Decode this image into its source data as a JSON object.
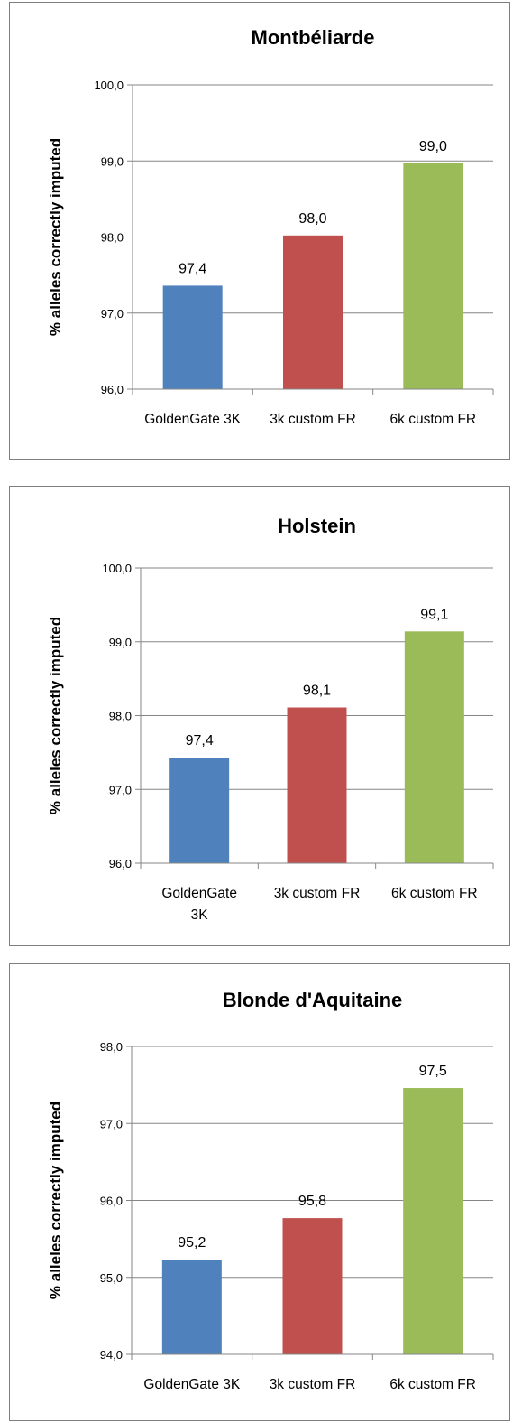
{
  "chart_data": [
    {
      "type": "bar",
      "title": "Montbéliarde",
      "ylabel": "% alleles correctly imputed",
      "xlabel": "",
      "categories": [
        "GoldenGate 3K",
        "3k custom FR",
        "6k custom FR"
      ],
      "category_lines": [
        [
          "GoldenGate 3K"
        ],
        [
          "3k custom FR"
        ],
        [
          "6k custom FR"
        ]
      ],
      "values": [
        97.36,
        98.02,
        98.97
      ],
      "data_labels": [
        "97,4",
        "98,0",
        "99,0"
      ],
      "ylim": [
        96.0,
        100.0
      ],
      "yticks": [
        96.0,
        97.0,
        98.0,
        99.0,
        100.0
      ],
      "ytick_labels": [
        "96,0",
        "97,0",
        "98,0",
        "99,0",
        "100,0"
      ],
      "colors": [
        "#4f81bd",
        "#c0504d",
        "#9bbb59"
      ],
      "grid": true
    },
    {
      "type": "bar",
      "title": "Holstein",
      "ylabel": "% alleles correctly imputed",
      "xlabel": "",
      "categories": [
        "GoldenGate 3K",
        "3k custom FR",
        "6k custom FR"
      ],
      "category_lines": [
        [
          "GoldenGate",
          "3K"
        ],
        [
          "3k custom FR"
        ],
        [
          "6k custom FR"
        ]
      ],
      "values": [
        97.43,
        98.11,
        99.14
      ],
      "data_labels": [
        "97,4",
        "98,1",
        "99,1"
      ],
      "ylim": [
        96.0,
        100.0
      ],
      "yticks": [
        96.0,
        97.0,
        98.0,
        99.0,
        100.0
      ],
      "ytick_labels": [
        "96,0",
        "97,0",
        "98,0",
        "99,0",
        "100,0"
      ],
      "colors": [
        "#4f81bd",
        "#c0504d",
        "#9bbb59"
      ],
      "grid": true
    },
    {
      "type": "bar",
      "title": "Blonde d'Aquitaine",
      "ylabel": "% alleles correctly imputed",
      "xlabel": "",
      "categories": [
        "GoldenGate 3K",
        "3k custom FR",
        "6k custom FR"
      ],
      "category_lines": [
        [
          "GoldenGate 3K"
        ],
        [
          "3k custom FR"
        ],
        [
          "6k custom FR"
        ]
      ],
      "values": [
        95.23,
        95.77,
        97.46
      ],
      "data_labels": [
        "95,2",
        "95,8",
        "97,5"
      ],
      "ylim": [
        94.0,
        98.0
      ],
      "yticks": [
        94.0,
        95.0,
        96.0,
        97.0,
        98.0
      ],
      "ytick_labels": [
        "94,0",
        "95,0",
        "96,0",
        "97,0",
        "98,0"
      ],
      "colors": [
        "#4f81bd",
        "#c0504d",
        "#9bbb59"
      ],
      "grid": true
    }
  ]
}
